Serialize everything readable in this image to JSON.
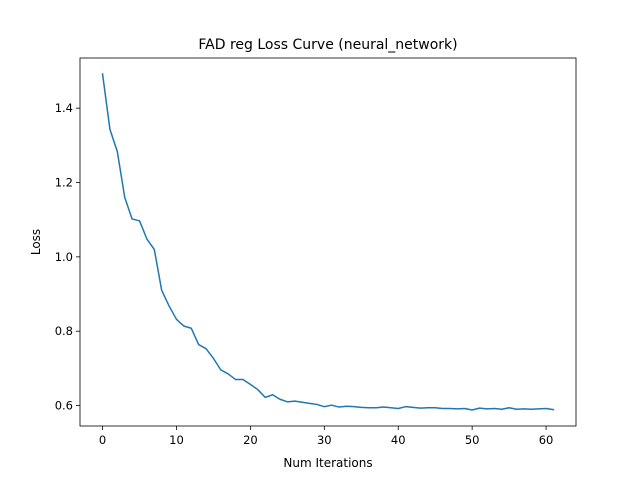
{
  "chart_data": {
    "type": "line",
    "title": "FAD reg Loss Curve (neural_network)",
    "xlabel": "Num Iterations",
    "ylabel": "Loss",
    "xlim": [
      -3.05,
      64.05
    ],
    "ylim": [
      0.545,
      1.535
    ],
    "xticks": [
      0,
      10,
      20,
      30,
      40,
      50,
      60
    ],
    "yticks": [
      0.6,
      0.8,
      1.0,
      1.2,
      1.4
    ],
    "xtick_labels": [
      "0",
      "10",
      "20",
      "30",
      "40",
      "50",
      "60"
    ],
    "ytick_labels": [
      "0.6",
      "0.8",
      "1.0",
      "1.2",
      "1.4"
    ],
    "grid": false,
    "legend": null,
    "series": [
      {
        "color": "#1f77b4",
        "x": [
          0,
          1,
          2,
          3,
          4,
          5,
          6,
          7,
          8,
          9,
          10,
          11,
          12,
          13,
          14,
          15,
          16,
          17,
          18,
          19,
          20,
          21,
          22,
          23,
          24,
          25,
          26,
          27,
          28,
          29,
          30,
          31,
          32,
          33,
          34,
          35,
          36,
          37,
          38,
          39,
          40,
          41,
          42,
          43,
          44,
          45,
          46,
          47,
          48,
          49,
          50,
          51,
          52,
          53,
          54,
          55,
          56,
          57,
          58,
          59,
          60,
          61
        ],
        "y": [
          1.492,
          1.343,
          1.283,
          1.16,
          1.102,
          1.097,
          1.048,
          1.02,
          0.91,
          0.868,
          0.832,
          0.814,
          0.808,
          0.764,
          0.753,
          0.727,
          0.696,
          0.685,
          0.67,
          0.67,
          0.657,
          0.643,
          0.622,
          0.629,
          0.617,
          0.61,
          0.612,
          0.609,
          0.606,
          0.603,
          0.597,
          0.601,
          0.596,
          0.598,
          0.597,
          0.595,
          0.594,
          0.594,
          0.596,
          0.594,
          0.592,
          0.597,
          0.595,
          0.593,
          0.594,
          0.594,
          0.592,
          0.592,
          0.591,
          0.592,
          0.588,
          0.593,
          0.591,
          0.592,
          0.59,
          0.594,
          0.59,
          0.591,
          0.59,
          0.591,
          0.592,
          0.589
        ]
      }
    ]
  }
}
